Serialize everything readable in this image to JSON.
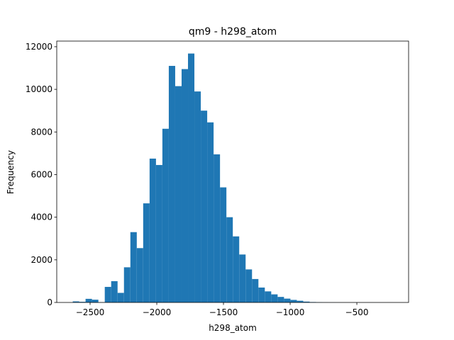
{
  "chart_data": {
    "type": "histogram",
    "title": "qm9 - h298_atom",
    "x_label": "h298_atom",
    "y_label": "Frequency",
    "color": "#1f77b4",
    "bins": [
      -2630,
      -2582,
      -2534,
      -2486,
      -2438,
      -2390,
      -2342,
      -2294,
      -2246,
      -2198,
      -2150,
      -2102,
      -2054,
      -2006,
      -1958,
      -1910,
      -1862,
      -1814,
      -1766,
      -1718,
      -1670,
      -1622,
      -1574,
      -1526,
      -1478,
      -1430,
      -1382,
      -1334,
      -1286,
      -1238,
      -1190,
      -1142,
      -1094,
      -1046,
      -998,
      -950,
      -902,
      -854,
      -806,
      -758,
      -710,
      -662,
      -614,
      -566,
      -518,
      -470,
      -422,
      -374,
      -326,
      -278,
      -230
    ],
    "values": [
      50,
      30,
      170,
      130,
      10,
      730,
      1000,
      450,
      1650,
      3300,
      2550,
      4650,
      6750,
      6450,
      8150,
      11100,
      10150,
      10950,
      11680,
      9900,
      9000,
      8450,
      6950,
      5400,
      4000,
      3100,
      2250,
      1550,
      1100,
      700,
      520,
      380,
      260,
      180,
      120,
      80,
      40,
      20,
      10,
      5,
      3,
      2,
      1,
      1,
      0,
      0,
      1,
      0,
      0,
      1
    ],
    "xlim": [
      -2750,
      -112
    ],
    "xticks": [
      {
        "value": -2500,
        "label": "−2500"
      },
      {
        "value": -2000,
        "label": "−2000"
      },
      {
        "value": -1500,
        "label": "−1500"
      },
      {
        "value": -1000,
        "label": "−1000"
      },
      {
        "value": -500,
        "label": "−500"
      }
    ],
    "ylim": [
      0,
      12264
    ],
    "yticks": [
      0,
      2000,
      4000,
      6000,
      8000,
      10000,
      12000
    ]
  }
}
